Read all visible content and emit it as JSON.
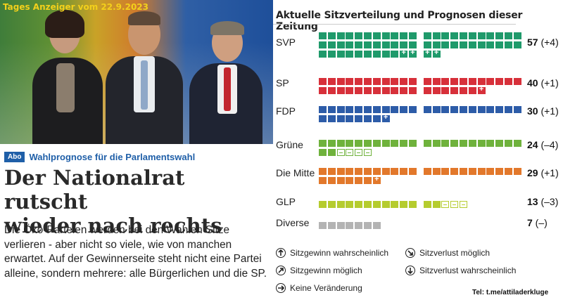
{
  "source_tag": "Tages Anzeiger vom 22.9.2023",
  "article": {
    "badge": "Abo",
    "kicker": "Wahlprognose für die Parlamentswahl",
    "headline_line1": "Der Nationalrat rutscht",
    "headline_line2": "wieder nach rechts",
    "lead": "Die Öko-Parteien werden bei den Wahlen Sitze verlieren - aber nicht so viele, wie von manchen erwartet. Auf der Gewinnerseite steht nicht eine Partei alleine, sondern mehrere: alle Bürgerlichen und die SP."
  },
  "chart_data": {
    "type": "table",
    "title": "Aktuelle Sitzverteilung und Prognosen dieser Zeitung",
    "parties": [
      {
        "name": "SVP",
        "seats": "57",
        "change": "(+4)",
        "color": "#1f9a6b",
        "base": 53,
        "gain": 4,
        "loss": 0
      },
      {
        "name": "SP",
        "seats": "40",
        "change": "(+1)",
        "color": "#d7303a",
        "base": 39,
        "gain": 1,
        "loss": 0
      },
      {
        "name": "FDP",
        "seats": "30",
        "change": "(+1)",
        "color": "#2d5ca8",
        "base": 29,
        "gain": 1,
        "loss": 0
      },
      {
        "name": "Grüne",
        "seats": "24",
        "change": "(–4)",
        "color": "#6fb23c",
        "base": 24,
        "gain": 0,
        "loss": 4
      },
      {
        "name": "Die Mitte",
        "seats": "29",
        "change": "(+1)",
        "color": "#e2782b",
        "base": 28,
        "gain": 1,
        "loss": 0
      },
      {
        "name": "GLP",
        "seats": "13",
        "change": "(–3)",
        "color": "#b5cc2e",
        "base": 13,
        "gain": 0,
        "loss": 3
      },
      {
        "name": "Diverse",
        "seats": "7",
        "change": "(–)",
        "color": "#b3b3b3",
        "base": 7,
        "gain": 0,
        "loss": 0
      }
    ]
  },
  "legend": {
    "gain_likely": "Sitzgewinn wahrscheinlich",
    "gain_possible": "Sitzgewinn möglich",
    "no_change": "Keine Veränderung",
    "loss_possible": "Sitzverlust möglich",
    "loss_likely": "Sitzverlust wahrscheinlich"
  },
  "credit": "Tel: t.me/attiladerkluge"
}
